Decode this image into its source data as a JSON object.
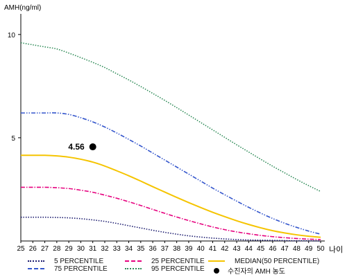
{
  "chart_data": {
    "type": "line",
    "ylabel": "AMH(ng/ml)",
    "xlabel": "나이",
    "x": [
      25,
      26,
      27,
      28,
      29,
      30,
      31,
      32,
      33,
      34,
      35,
      36,
      37,
      38,
      39,
      40,
      41,
      42,
      43,
      44,
      45,
      46,
      47,
      48,
      49,
      50
    ],
    "xlim": [
      25,
      50
    ],
    "ylim": [
      0,
      11
    ],
    "yticks": [
      5,
      10
    ],
    "grid": false,
    "series": [
      {
        "name": "5 PERCENTILE",
        "color": "#1a1a6e",
        "dash": "dot",
        "values": [
          1.15,
          1.15,
          1.15,
          1.14,
          1.12,
          1.08,
          1.02,
          0.95,
          0.85,
          0.74,
          0.63,
          0.52,
          0.42,
          0.33,
          0.25,
          0.19,
          0.14,
          0.1,
          0.07,
          0.05,
          0.04,
          0.03,
          0.02,
          0.01,
          0.01,
          0.0
        ]
      },
      {
        "name": "25 PERCENTILE",
        "color": "#e6007e",
        "dash": "dashdot",
        "values": [
          2.6,
          2.6,
          2.6,
          2.58,
          2.54,
          2.46,
          2.36,
          2.22,
          2.07,
          1.9,
          1.72,
          1.53,
          1.34,
          1.16,
          0.99,
          0.83,
          0.68,
          0.55,
          0.44,
          0.35,
          0.27,
          0.21,
          0.16,
          0.12,
          0.09,
          0.07
        ]
      },
      {
        "name": "MEDIAN(50 PERCENTILE)",
        "color": "#f5c400",
        "dash": "solid",
        "values": [
          4.15,
          4.15,
          4.15,
          4.12,
          4.06,
          3.96,
          3.82,
          3.63,
          3.4,
          3.16,
          2.9,
          2.63,
          2.37,
          2.11,
          1.86,
          1.62,
          1.39,
          1.18,
          0.98,
          0.8,
          0.64,
          0.5,
          0.39,
          0.3,
          0.23,
          0.18
        ]
      },
      {
        "name": "75 PERCENTILE",
        "color": "#3355cc",
        "dash": "dashdotdot",
        "values": [
          6.2,
          6.2,
          6.2,
          6.2,
          6.13,
          5.97,
          5.77,
          5.52,
          5.23,
          4.92,
          4.6,
          4.26,
          3.92,
          3.58,
          3.24,
          2.9,
          2.56,
          2.24,
          1.93,
          1.63,
          1.35,
          1.09,
          0.86,
          0.66,
          0.48,
          0.33
        ]
      },
      {
        "name": "95 PERCENTILE",
        "color": "#2e8b57",
        "dash": "dot",
        "values": [
          9.6,
          9.5,
          9.4,
          9.3,
          9.1,
          8.88,
          8.65,
          8.4,
          8.1,
          7.8,
          7.48,
          7.15,
          6.81,
          6.46,
          6.1,
          5.74,
          5.38,
          5.02,
          4.66,
          4.31,
          3.96,
          3.62,
          3.3,
          2.98,
          2.68,
          2.4
        ]
      }
    ],
    "marker": {
      "label": "수진자의 AMH 농도",
      "x": 31,
      "y": 4.56,
      "value_label": "4.56"
    }
  }
}
